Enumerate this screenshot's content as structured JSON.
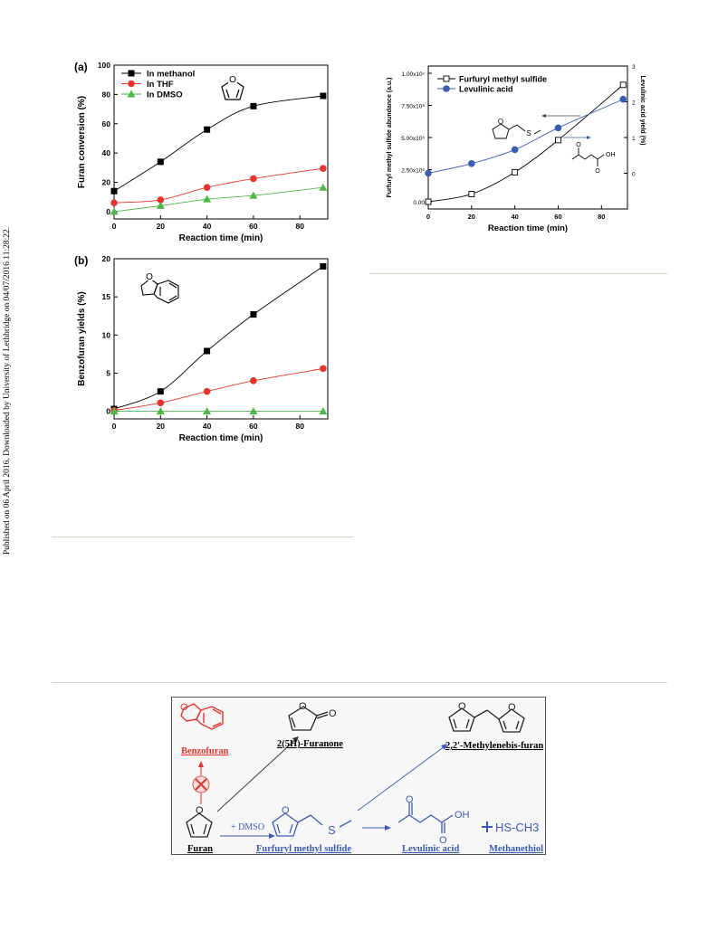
{
  "sidebar": {
    "text": "Published on 06 April 2016. Downloaded by University of Lethbridge on 04/07/2016 11:28:22."
  },
  "colors": {
    "black": "#000000",
    "red": "#e8342c",
    "green": "#4cb848",
    "blue": "#3a5cb5",
    "open": "#ffffff",
    "rule": "#d8d2c2"
  },
  "chart_data": [
    {
      "panel_label": "(a)",
      "type": "line",
      "x": [
        0,
        20,
        40,
        60,
        90
      ],
      "xticks": [
        "0",
        "20",
        "40",
        "60",
        "80"
      ],
      "xlim": [
        0,
        92
      ],
      "ylim": [
        -5,
        100
      ],
      "yticks": [
        "0",
        "20",
        "40",
        "60",
        "80",
        "100"
      ],
      "xlabel": "Reaction time (min)",
      "ylabel": "Furan conversion (%)",
      "legend_position": "top-left",
      "icon": "furan-structure-icon",
      "series": [
        {
          "name": "In methanol",
          "color": "#000000",
          "marker": "square",
          "values": [
            14,
            34,
            56,
            72,
            79
          ]
        },
        {
          "name": "In THF",
          "color": "#e8342c",
          "marker": "circle",
          "values": [
            6,
            8,
            16.5,
            22.5,
            29.5
          ]
        },
        {
          "name": "In DMSO",
          "color": "#4cb848",
          "marker": "triangle",
          "values": [
            0,
            4,
            8.5,
            11,
            16.5
          ]
        }
      ]
    },
    {
      "panel_label": "(b)",
      "type": "line",
      "x": [
        0,
        20,
        40,
        60,
        90
      ],
      "xticks": [
        "0",
        "20",
        "40",
        "60",
        "80"
      ],
      "xlim": [
        0,
        92
      ],
      "ylim": [
        -1,
        20
      ],
      "yticks": [
        "0",
        "5",
        "10",
        "15",
        "20"
      ],
      "xlabel": "Reaction time (min)",
      "ylabel": "Benzofuran yields (%)",
      "icon": "benzofuran-structure-icon",
      "series": [
        {
          "color": "#000000",
          "marker": "square",
          "values": [
            0.3,
            2.6,
            7.9,
            12.7,
            19
          ]
        },
        {
          "color": "#e8342c",
          "marker": "circle",
          "values": [
            0.1,
            1.1,
            2.6,
            4,
            5.6
          ]
        },
        {
          "color": "#4cb848",
          "marker": "triangle",
          "values": [
            0,
            0,
            0,
            0,
            0
          ]
        }
      ]
    },
    {
      "type": "line",
      "x": [
        0,
        20,
        40,
        60,
        90
      ],
      "xticks": [
        "0",
        "20",
        "40",
        "60",
        "80"
      ],
      "xlim": [
        0,
        92
      ],
      "ylim_left": [
        0,
        1.0
      ],
      "ylim_right": [
        -1,
        3
      ],
      "yticks_left": [
        "0.00",
        "2.50x10⁶",
        "5.00x10⁶",
        "7.50x10⁶",
        "1.00x10⁷"
      ],
      "yticks_right": [
        "0",
        "1",
        "2",
        "3"
      ],
      "xlabel": "Reaction time (min)",
      "ylabel_left": "Furfuryl methyl sulfide abundance (a.u.)",
      "ylabel_right": "Levulinic acid yield (%)",
      "legend_position": "top-left",
      "series": [
        {
          "name": "Furfuryl methyl sulfide",
          "axis": "left",
          "color": "#000000",
          "marker": "open-square",
          "values": [
            0,
            0.06,
            0.23,
            0.48,
            0.91
          ]
        },
        {
          "name": "Levulinic acid",
          "axis": "right",
          "color": "#3a5cb5",
          "marker": "circle",
          "values": [
            0.0,
            0.27,
            0.66,
            1.27,
            2.07
          ]
        }
      ]
    }
  ],
  "scheme": {
    "benzofuran": "Benzofuran",
    "furanone": "2(5H)-Furanone",
    "methylenebis": "2,2'-Methylenebis-furan",
    "furan": "Furan",
    "plus_dmso": "+ DMSO",
    "fms": "Furfuryl methyl sulfide",
    "levulinic": "Levulinic acid",
    "methanethiol": "Methanethiol",
    "hs_ch3": "HS-CH3",
    "o": "O",
    "s": "S",
    "oh": "OH"
  }
}
